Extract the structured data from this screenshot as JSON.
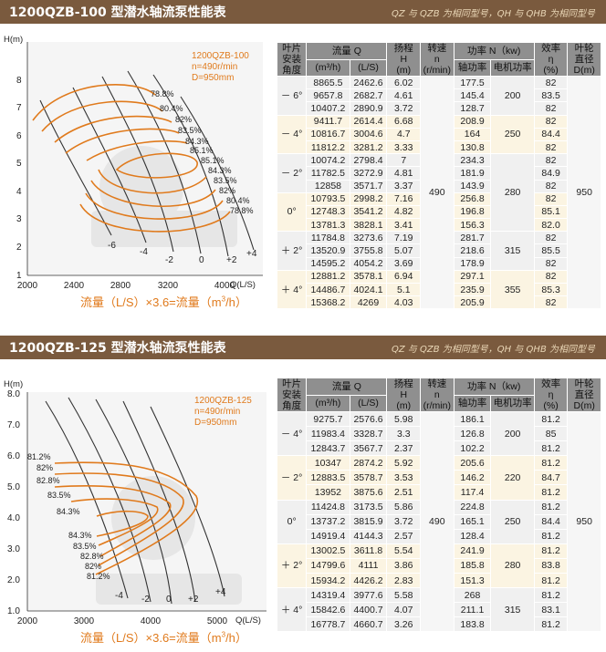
{
  "sections": [
    {
      "title": "1200QZB-100 型潜水轴流泵性能表",
      "note": "QZ 与 QZB 为相同型号，QH 与 QHB 为相同型号",
      "chart": {
        "legend": [
          "1200QZB-100",
          "n=490r/min",
          "D=950mm"
        ],
        "y_label": "H(m)",
        "x_label": "Q(L/S)",
        "x_ticks": [
          "2000",
          "2400",
          "2800",
          "3200",
          "3600",
          "4000"
        ],
        "y_ticks": [
          "1",
          "2",
          "3",
          "4",
          "5",
          "6",
          "7",
          "8"
        ],
        "blade_labels": [
          "-6",
          "-4",
          "-2",
          "0",
          "+2",
          "+4"
        ],
        "eff_labels": [
          "78.8%",
          "80.4%",
          "82%",
          "83.5%",
          "84.3%",
          "85.1%",
          "85.1%",
          "84.3%",
          "83.5%",
          "82%",
          "80.4%",
          "78.8%"
        ]
      },
      "formula": {
        "prefix": "流量（L/S）×3.6=流量（m",
        "sup": "3",
        "suffix": "/h）"
      },
      "table": {
        "headers": {
          "angle": [
            "叶片",
            "安装",
            "角度"
          ],
          "flow": "流量 Q",
          "flow_m3h": "(m³/h)",
          "flow_ls": "(L/S)",
          "head": [
            "扬程",
            "H",
            "(m)"
          ],
          "speed": [
            "转速",
            "n",
            "(r/min)"
          ],
          "power": "功率 N（kw)",
          "shaft_power": "轴功率",
          "motor_power": "电机功率",
          "eff": [
            "效率",
            "η",
            "(%)"
          ],
          "impeller": [
            "叶轮",
            "直径",
            "D(m)"
          ]
        },
        "speed": "490",
        "impeller": "950",
        "groups": [
          {
            "angle": "－ 6°",
            "motor": "200",
            "rows": [
              {
                "m3h": "8865.5",
                "ls": "2462.6",
                "h": "6.02",
                "shaft": "177.5",
                "eff": "82"
              },
              {
                "m3h": "9657.8",
                "ls": "2682.7",
                "h": "4.61",
                "shaft": "145.4",
                "eff": "83.5"
              },
              {
                "m3h": "10407.2",
                "ls": "2890.9",
                "h": "3.72",
                "shaft": "128.7",
                "eff": "82"
              }
            ]
          },
          {
            "angle": "－ 4°",
            "motor": "250",
            "rows": [
              {
                "m3h": "9411.7",
                "ls": "2614.4",
                "h": "6.68",
                "shaft": "208.9",
                "eff": "82"
              },
              {
                "m3h": "10816.7",
                "ls": "3004.6",
                "h": "4.7",
                "shaft": "164",
                "eff": "84.4"
              },
              {
                "m3h": "11812.2",
                "ls": "3281.2",
                "h": "3.33",
                "shaft": "130.8",
                "eff": "82"
              }
            ]
          },
          {
            "angle": "－ 2°",
            "motor": "280",
            "rows": [
              {
                "m3h": "10074.2",
                "ls": "2798.4",
                "h": "7",
                "shaft": "234.3",
                "eff": "82"
              },
              {
                "m3h": "11782.5",
                "ls": "3272.9",
                "h": "4.81",
                "shaft": "181.9",
                "eff": "84.9"
              },
              {
                "m3h": "12858",
                "ls": "3571.7",
                "h": "3.37",
                "shaft": "143.9",
                "eff": "82"
              }
            ]
          },
          {
            "angle": "0°",
            "motor": "",
            "rows": [
              {
                "m3h": "10793.5",
                "ls": "2998.2",
                "h": "7.16",
                "shaft": "256.8",
                "eff": "82"
              },
              {
                "m3h": "12748.3",
                "ls": "3541.2",
                "h": "4.82",
                "shaft": "196.8",
                "eff": "85.1"
              },
              {
                "m3h": "13781.3",
                "ls": "3828.1",
                "h": "3.41",
                "shaft": "156.3",
                "eff": "82.0"
              }
            ]
          },
          {
            "angle": "＋ 2°",
            "motor": "315",
            "rows": [
              {
                "m3h": "11784.8",
                "ls": "3273.6",
                "h": "7.19",
                "shaft": "281.7",
                "eff": "82"
              },
              {
                "m3h": "13520.9",
                "ls": "3755.8",
                "h": "5.07",
                "shaft": "218.6",
                "eff": "85.5"
              },
              {
                "m3h": "14595.2",
                "ls": "4054.2",
                "h": "3.69",
                "shaft": "178.9",
                "eff": "82"
              }
            ]
          },
          {
            "angle": "＋ 4°",
            "motor": "355",
            "rows": [
              {
                "m3h": "12881.2",
                "ls": "3578.1",
                "h": "6.94",
                "shaft": "297.1",
                "eff": "82"
              },
              {
                "m3h": "14486.7",
                "ls": "4024.1",
                "h": "5.1",
                "shaft": "235.9",
                "eff": "85.3"
              },
              {
                "m3h": "15368.2",
                "ls": "4269",
                "h": "4.03",
                "shaft": "205.9",
                "eff": "82"
              }
            ]
          }
        ]
      }
    },
    {
      "title": "1200QZB-125 型潜水轴流泵性能表",
      "note": "QZ 与 QZB 为相同型号，QH 与 QHB 为相同型号",
      "chart": {
        "legend": [
          "1200QZB-125",
          "n=490r/min",
          "D=950mm"
        ],
        "y_label": "H(m)",
        "x_label": "Q(L/S)",
        "x_ticks": [
          "2000",
          "3000",
          "4000",
          "5000"
        ],
        "y_ticks": [
          "1.0",
          "2.0",
          "3.0",
          "4.0",
          "5.0",
          "6.0",
          "7.0",
          "8.0"
        ],
        "blade_labels": [
          "-4",
          "-2",
          "0",
          "+2",
          "+4"
        ],
        "eff_labels": [
          "81.2%",
          "82%",
          "82.8%",
          "83.5%",
          "84.3%",
          "84.3%",
          "83.5%",
          "82.8%",
          "82%",
          "81.2%"
        ]
      },
      "formula": {
        "prefix": "流量（L/S）×3.6=流量（m",
        "sup": "3",
        "suffix": "/h）"
      },
      "table": {
        "headers": {
          "angle": [
            "叶片",
            "安装",
            "角度"
          ],
          "flow": "流量 Q",
          "flow_m3h": "(m³/h)",
          "flow_ls": "(L/S)",
          "head": [
            "扬程",
            "H",
            "(m)"
          ],
          "speed": [
            "转速",
            "n",
            "(r/min)"
          ],
          "power": "功率 N（kw)",
          "shaft_power": "轴功率",
          "motor_power": "电机功率",
          "eff": [
            "效率",
            "η",
            "(%)"
          ],
          "impeller": [
            "叶轮",
            "直径",
            "D(m)"
          ]
        },
        "speed": "490",
        "impeller": "950",
        "groups": [
          {
            "angle": "－ 4°",
            "motor": "200",
            "rows": [
              {
                "m3h": "9275.7",
                "ls": "2576.6",
                "h": "5.98",
                "shaft": "186.1",
                "eff": "81.2"
              },
              {
                "m3h": "11983.4",
                "ls": "3328.7",
                "h": "3.3",
                "shaft": "126.8",
                "eff": "85"
              },
              {
                "m3h": "12843.7",
                "ls": "3567.7",
                "h": "2.37",
                "shaft": "102.2",
                "eff": "81.2"
              }
            ]
          },
          {
            "angle": "－ 2°",
            "motor": "220",
            "rows": [
              {
                "m3h": "10347",
                "ls": "2874.2",
                "h": "5.92",
                "shaft": "205.6",
                "eff": "81.2"
              },
              {
                "m3h": "12883.5",
                "ls": "3578.7",
                "h": "3.53",
                "shaft": "146.2",
                "eff": "84.7"
              },
              {
                "m3h": "13952",
                "ls": "3875.6",
                "h": "2.51",
                "shaft": "117.4",
                "eff": "81.2"
              }
            ]
          },
          {
            "angle": "0°",
            "motor": "250",
            "rows": [
              {
                "m3h": "11424.8",
                "ls": "3173.5",
                "h": "5.86",
                "shaft": "224.8",
                "eff": "81.2"
              },
              {
                "m3h": "13737.2",
                "ls": "3815.9",
                "h": "3.72",
                "shaft": "165.1",
                "eff": "84.4"
              },
              {
                "m3h": "14919.4",
                "ls": "4144.3",
                "h": "2.57",
                "shaft": "128.4",
                "eff": "81.2"
              }
            ]
          },
          {
            "angle": "＋ 2°",
            "motor": "280",
            "rows": [
              {
                "m3h": "13002.5",
                "ls": "3611.8",
                "h": "5.54",
                "shaft": "241.9",
                "eff": "81.2"
              },
              {
                "m3h": "14799.6",
                "ls": "4111",
                "h": "3.86",
                "shaft": "185.8",
                "eff": "83.8"
              },
              {
                "m3h": "15934.2",
                "ls": "4426.2",
                "h": "2.83",
                "shaft": "151.3",
                "eff": "81.2"
              }
            ]
          },
          {
            "angle": "＋ 4°",
            "motor": "315",
            "rows": [
              {
                "m3h": "14319.4",
                "ls": "3977.6",
                "h": "5.58",
                "shaft": "268",
                "eff": "81.2"
              },
              {
                "m3h": "15842.6",
                "ls": "4400.7",
                "h": "4.07",
                "shaft": "211.1",
                "eff": "83.1"
              },
              {
                "m3h": "16778.7",
                "ls": "4660.7",
                "h": "3.26",
                "shaft": "183.8",
                "eff": "81.2"
              }
            ]
          }
        ]
      }
    }
  ]
}
